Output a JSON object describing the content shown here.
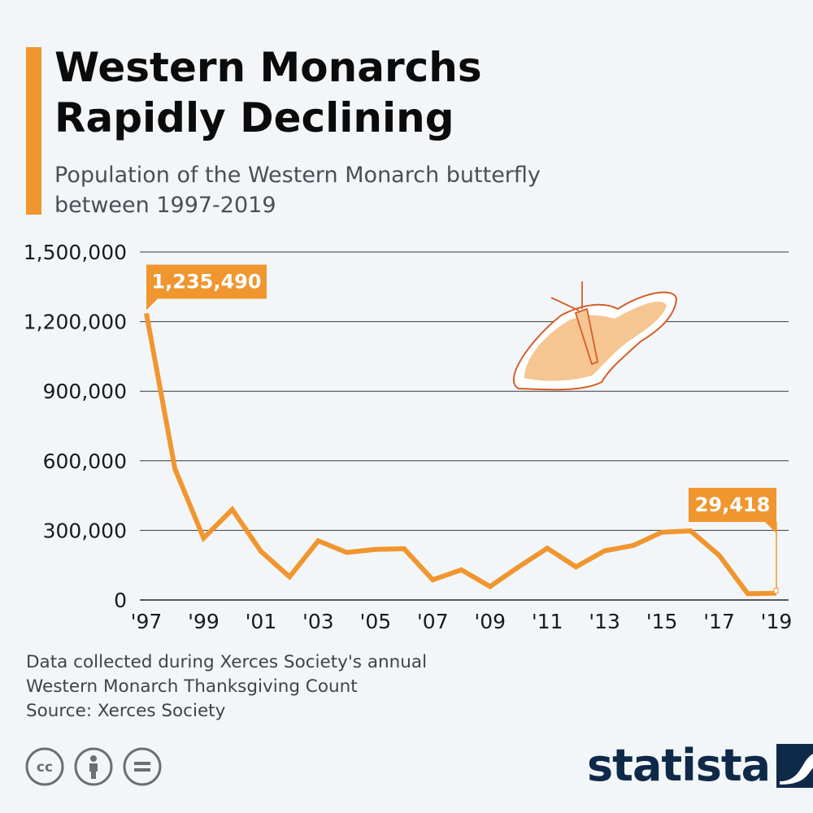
{
  "header": {
    "title": "Western Monarchs\nRapidly Declining",
    "subtitle": "Population of the Western Monarch butterfly\nbetween 1997-2019"
  },
  "colors": {
    "accent": "#f0962f",
    "grid": "#3a3a3a",
    "text": "#1a1a1a",
    "butterfly_fill": "#f5c592",
    "butterfly_stroke": "#d45f2a",
    "logo": "#0f2948"
  },
  "chart_data": {
    "type": "line",
    "title": "Western Monarchs Rapidly Declining",
    "subtitle": "Population of the Western Monarch butterfly between 1997-2019",
    "x": [
      1997,
      1998,
      1999,
      2000,
      2001,
      2002,
      2003,
      2004,
      2005,
      2006,
      2007,
      2008,
      2009,
      2010,
      2011,
      2012,
      2013,
      2014,
      2015,
      2016,
      2017,
      2018,
      2019
    ],
    "values": [
      1235490,
      565000,
      267000,
      390000,
      210000,
      100000,
      255000,
      205000,
      218000,
      221000,
      87000,
      130000,
      58000,
      143000,
      223000,
      143000,
      212000,
      235000,
      292000,
      298000,
      193000,
      27000,
      29418
    ],
    "x_tick_labels": [
      "'97",
      "'99",
      "'01",
      "'03",
      "'05",
      "'07",
      "'09",
      "'11",
      "'13",
      "'15",
      "'17",
      "'19"
    ],
    "y_tick_labels": [
      "0",
      "300,000",
      "600,000",
      "900,000",
      "1,200,000",
      "1,500,000"
    ],
    "ylim": [
      0,
      1500000
    ],
    "xlim": [
      1997,
      2019
    ],
    "grid": true,
    "annotations": [
      {
        "year": 1997,
        "label": "1,235,490"
      },
      {
        "year": 2019,
        "label": "29,418"
      }
    ],
    "xlabel": "",
    "ylabel": ""
  },
  "notes": {
    "line1": "Data collected during Xerces Society's annual",
    "line2": "Western Monarch Thanksgiving Count",
    "line3": "Source: Xerces Society"
  },
  "footer": {
    "logo_text": "statista",
    "icons": [
      "cc-icon",
      "person-icon",
      "equals-icon"
    ]
  }
}
